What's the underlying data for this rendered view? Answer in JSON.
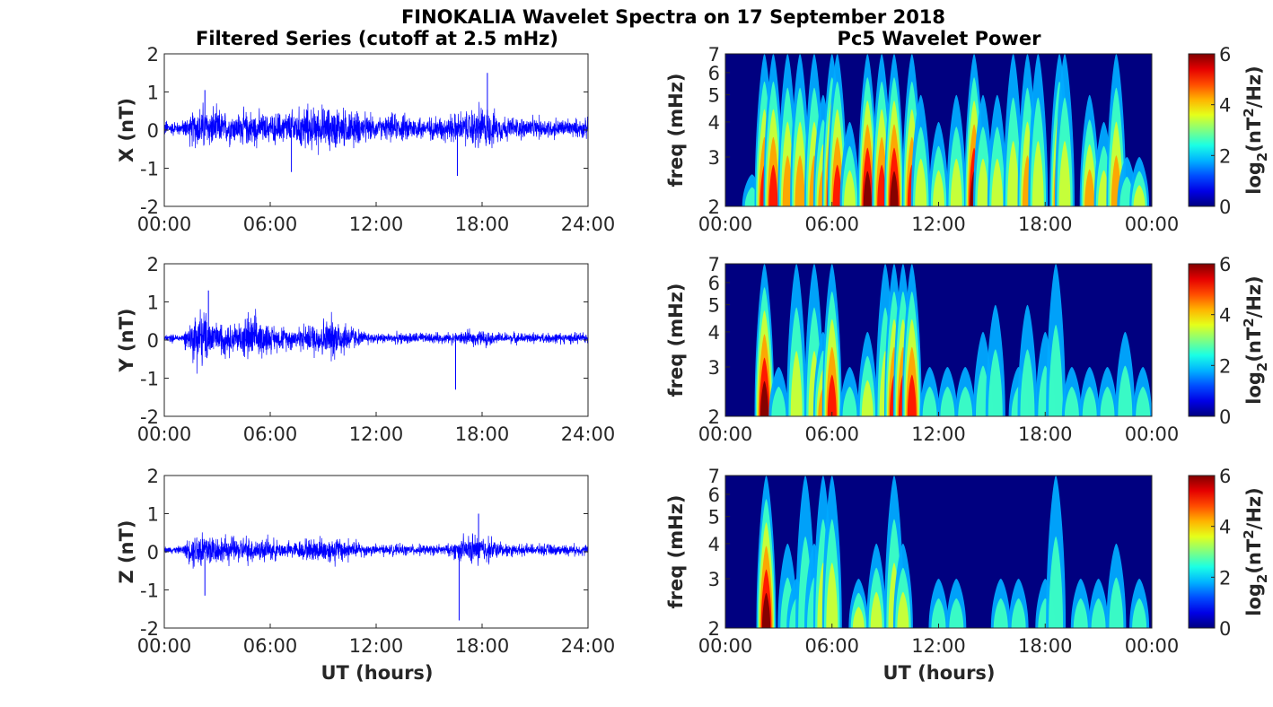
{
  "chart_data": {
    "title": "FINOKALIA Wavelet Spectra on 17 September 2018",
    "left_title": "Filtered Series (cutoff at 2.5 mHz)",
    "right_title": "Pc5 Wavelet Power",
    "xlabel": "UT (hours)",
    "left_xticks": [
      "00:00",
      "06:00",
      "12:00",
      "18:00",
      "24:00"
    ],
    "right_xticks": [
      "00:00",
      "06:00",
      "12:00",
      "18:00",
      "00:00"
    ],
    "left_yticks": [
      "-2",
      "-1",
      "0",
      "1",
      "2"
    ],
    "left_ylim": [
      -2,
      2
    ],
    "freq_ylabel": "freq (mHz)",
    "freq_ticks": [
      "2",
      "3",
      "4",
      "5",
      "6",
      "7"
    ],
    "freq_ylim": [
      2,
      7
    ],
    "colorbar_label": "log2(nT2/Hz)",
    "colorbar_ticks": [
      "0",
      "2",
      "4",
      "6"
    ],
    "colorbar_range": [
      0,
      6
    ],
    "panels": [
      {
        "type": "line",
        "component": "X",
        "ylabel": "X (nT)",
        "envelope_per_hour": [
          0.3,
          0.25,
          0.9,
          0.7,
          0.6,
          0.7,
          0.5,
          0.7,
          0.8,
          0.8,
          0.8,
          0.6,
          0.4,
          0.5,
          0.5,
          0.4,
          0.5,
          0.6,
          0.9,
          0.5,
          0.4,
          0.4,
          0.4,
          0.35
        ],
        "spikes": [
          [
            16.6,
            -1.2
          ],
          [
            18.3,
            1.5
          ],
          [
            2.3,
            1.05
          ],
          [
            7.2,
            -1.1
          ]
        ],
        "wavelet_events": [
          [
            1.5,
            2.6,
            2
          ],
          [
            2.2,
            7,
            5
          ],
          [
            2.7,
            7,
            5
          ],
          [
            3.5,
            7,
            4
          ],
          [
            4.2,
            7,
            4
          ],
          [
            5,
            7,
            4
          ],
          [
            5.5,
            5,
            4
          ],
          [
            6,
            7,
            6
          ],
          [
            6.3,
            7,
            5
          ],
          [
            7,
            4,
            3
          ],
          [
            8,
            7,
            6
          ],
          [
            8.8,
            7,
            5
          ],
          [
            9.5,
            7,
            6
          ],
          [
            10.5,
            7,
            5
          ],
          [
            11,
            5,
            3
          ],
          [
            12,
            4,
            3
          ],
          [
            13,
            5,
            3
          ],
          [
            14,
            7,
            6
          ],
          [
            14.5,
            5,
            3
          ],
          [
            15.3,
            5,
            3
          ],
          [
            16.2,
            7,
            3
          ],
          [
            17,
            7,
            4
          ],
          [
            17.6,
            7,
            3
          ],
          [
            18.8,
            7,
            5
          ],
          [
            19.1,
            7,
            3
          ],
          [
            20.5,
            5,
            4
          ],
          [
            21.3,
            4,
            3
          ],
          [
            22,
            7,
            4
          ],
          [
            22.6,
            3,
            2
          ],
          [
            23.3,
            3,
            3
          ]
        ]
      },
      {
        "type": "line",
        "component": "Y",
        "ylabel": "Y (nT)",
        "envelope_per_hour": [
          0.15,
          0.15,
          1.2,
          0.6,
          0.6,
          0.9,
          0.5,
          0.4,
          0.5,
          0.8,
          0.8,
          0.3,
          0.2,
          0.2,
          0.2,
          0.2,
          0.2,
          0.25,
          0.3,
          0.2,
          0.2,
          0.2,
          0.2,
          0.2
        ],
        "spikes": [
          [
            16.5,
            -1.3
          ],
          [
            2.5,
            1.3
          ]
        ],
        "wavelet_events": [
          [
            2.2,
            7,
            6
          ],
          [
            3,
            3,
            2
          ],
          [
            4,
            7,
            3
          ],
          [
            5,
            7,
            3
          ],
          [
            5.5,
            4,
            4
          ],
          [
            6,
            7,
            5
          ],
          [
            7,
            3,
            2
          ],
          [
            8,
            4,
            3
          ],
          [
            9,
            7,
            3
          ],
          [
            9.5,
            7,
            5
          ],
          [
            10,
            7,
            5
          ],
          [
            10.5,
            7,
            5
          ],
          [
            11.5,
            3,
            2
          ],
          [
            12.5,
            3,
            2
          ],
          [
            13.5,
            3,
            2
          ],
          [
            14.5,
            4,
            2
          ],
          [
            15.2,
            5,
            2
          ],
          [
            16.5,
            3,
            2
          ],
          [
            17,
            5,
            2
          ],
          [
            18,
            4,
            2
          ],
          [
            18.6,
            7,
            2
          ],
          [
            19.5,
            3,
            2
          ],
          [
            20.5,
            3,
            2
          ],
          [
            21.5,
            3,
            2
          ],
          [
            22.5,
            4,
            2
          ],
          [
            23.5,
            3,
            2
          ]
        ]
      },
      {
        "type": "line",
        "component": "Z",
        "ylabel": "Z (nT)",
        "envelope_per_hour": [
          0.12,
          0.15,
          0.9,
          0.5,
          0.5,
          0.5,
          0.4,
          0.3,
          0.4,
          0.5,
          0.5,
          0.3,
          0.2,
          0.2,
          0.2,
          0.2,
          0.2,
          0.5,
          0.6,
          0.3,
          0.2,
          0.2,
          0.2,
          0.2
        ],
        "spikes": [
          [
            16.7,
            -1.8
          ],
          [
            17.8,
            1.0
          ],
          [
            2.3,
            -1.15
          ]
        ],
        "wavelet_events": [
          [
            2.3,
            7,
            6
          ],
          [
            3.5,
            4,
            2
          ],
          [
            4,
            3,
            2
          ],
          [
            4.5,
            7,
            2
          ],
          [
            5,
            4,
            2
          ],
          [
            5.5,
            7,
            3
          ],
          [
            6,
            7,
            3
          ],
          [
            7.5,
            3,
            3
          ],
          [
            8.5,
            4,
            3
          ],
          [
            9.5,
            7,
            3
          ],
          [
            10,
            4,
            3
          ],
          [
            12,
            3,
            2
          ],
          [
            13,
            3,
            2
          ],
          [
            15.5,
            3,
            2
          ],
          [
            16.5,
            3,
            2
          ],
          [
            18,
            3,
            2
          ],
          [
            18.6,
            7,
            2
          ],
          [
            20,
            3,
            2
          ],
          [
            21,
            3,
            2
          ],
          [
            22,
            4,
            2
          ],
          [
            23.3,
            3,
            2
          ]
        ]
      }
    ]
  }
}
